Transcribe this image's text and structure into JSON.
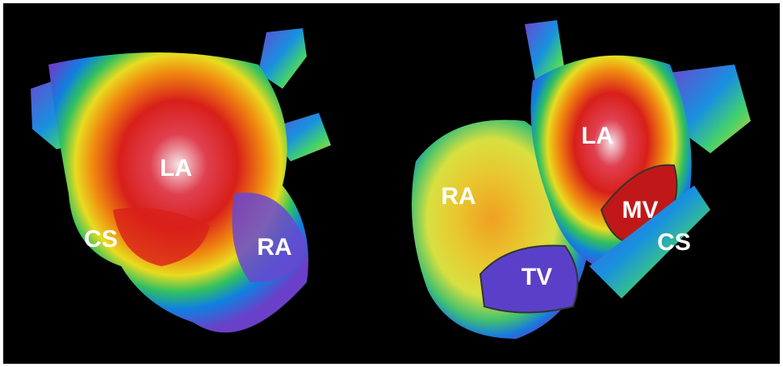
{
  "panels": [
    {
      "labels": [
        "LA",
        "CS",
        "RA"
      ]
    },
    {
      "labels": [
        "LA",
        "RA",
        "MV",
        "TV",
        "CS"
      ]
    }
  ]
}
